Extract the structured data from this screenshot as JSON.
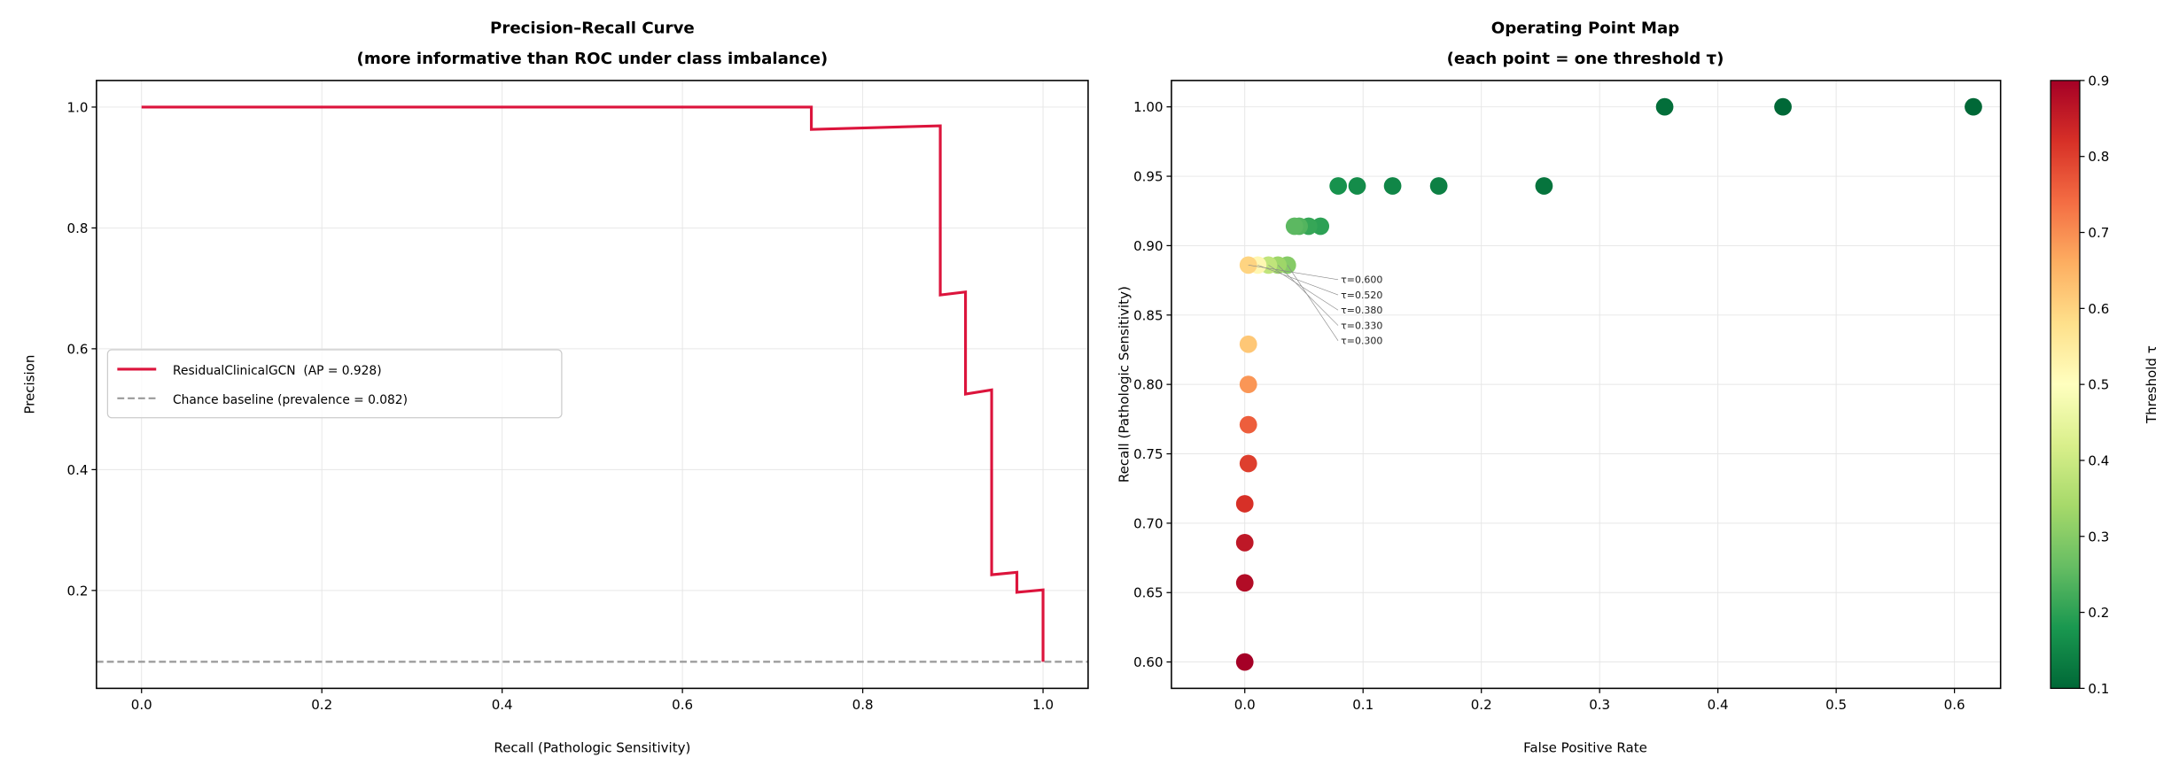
{
  "chart_data": [
    {
      "type": "line",
      "title": "Precision–Recall Curve",
      "subtitle": "(more informative than ROC under class imbalance)",
      "xlabel": "Recall (Pathologic Sensitivity)",
      "ylabel": "Precision",
      "xlim": [
        -0.05,
        1.05
      ],
      "ylim": [
        0.038,
        1.044
      ],
      "xticks": [
        0.0,
        0.2,
        0.4,
        0.6,
        0.8,
        1.0
      ],
      "xtick_labels": [
        "0.0",
        "0.2",
        "0.4",
        "0.6",
        "0.8",
        "1.0"
      ],
      "yticks": [
        0.2,
        0.4,
        0.6,
        0.8,
        1.0
      ],
      "ytick_labels": [
        "0.2",
        "0.4",
        "0.6",
        "0.8",
        "1.0"
      ],
      "grid": true,
      "legend_position": "center-left",
      "series": [
        {
          "name": "ResidualClinicalGCN  (AP = 0.928)",
          "color": "#dc143c",
          "style": "step",
          "points": [
            [
              0.0,
              1.0
            ],
            [
              0.743,
              1.0
            ],
            [
              0.743,
              0.963
            ],
            [
              0.886,
              0.969
            ],
            [
              0.886,
              0.689
            ],
            [
              0.914,
              0.694
            ],
            [
              0.914,
              0.525
            ],
            [
              0.943,
              0.532
            ],
            [
              0.943,
              0.226
            ],
            [
              0.971,
              0.23
            ],
            [
              0.971,
              0.197
            ],
            [
              1.0,
              0.201
            ],
            [
              1.0,
              0.082
            ]
          ]
        },
        {
          "name": "Chance baseline (prevalence = 0.082)",
          "color": "#999999",
          "style": "dashed",
          "y": 0.082
        }
      ]
    },
    {
      "type": "scatter",
      "title": "Operating Point Map",
      "subtitle": "(each point = one threshold τ)",
      "xlabel": "False Positive Rate",
      "ylabel": "Recall (Pathologic Sensitivity)",
      "xlim": [
        -0.062,
        0.639
      ],
      "ylim": [
        0.581,
        1.019
      ],
      "xticks": [
        0.0,
        0.1,
        0.2,
        0.3,
        0.4,
        0.5,
        0.6
      ],
      "xtick_labels": [
        "0.0",
        "0.1",
        "0.2",
        "0.3",
        "0.4",
        "0.5",
        "0.6"
      ],
      "yticks": [
        0.6,
        0.65,
        0.7,
        0.75,
        0.8,
        0.85,
        0.9,
        0.95,
        1.0
      ],
      "ytick_labels": [
        "0.60",
        "0.65",
        "0.70",
        "0.75",
        "0.80",
        "0.85",
        "0.90",
        "0.95",
        "1.00"
      ],
      "grid": true,
      "colormap": "RdYlGn_r",
      "colorbar": {
        "label": "Threshold τ",
        "range": [
          0.1,
          0.9
        ],
        "ticks": [
          0.1,
          0.2,
          0.3,
          0.4,
          0.5,
          0.6,
          0.7,
          0.8,
          0.9
        ],
        "tick_labels": [
          "0.1",
          "0.2",
          "0.3",
          "0.4",
          "0.5",
          "0.6",
          "0.7",
          "0.8",
          "0.9"
        ]
      },
      "points": [
        {
          "fpr": 0.0,
          "recall": 0.6,
          "tau": 0.9
        },
        {
          "fpr": 0.0,
          "recall": 0.657,
          "tau": 0.88
        },
        {
          "fpr": 0.0,
          "recall": 0.686,
          "tau": 0.86
        },
        {
          "fpr": 0.0,
          "recall": 0.714,
          "tau": 0.82
        },
        {
          "fpr": 0.003,
          "recall": 0.743,
          "tau": 0.8
        },
        {
          "fpr": 0.003,
          "recall": 0.771,
          "tau": 0.76
        },
        {
          "fpr": 0.003,
          "recall": 0.8,
          "tau": 0.69
        },
        {
          "fpr": 0.003,
          "recall": 0.829,
          "tau": 0.62
        },
        {
          "fpr": 0.036,
          "recall": 0.886,
          "tau": 0.3
        },
        {
          "fpr": 0.028,
          "recall": 0.886,
          "tau": 0.33
        },
        {
          "fpr": 0.02,
          "recall": 0.886,
          "tau": 0.38
        },
        {
          "fpr": 0.011,
          "recall": 0.886,
          "tau": 0.52
        },
        {
          "fpr": 0.003,
          "recall": 0.886,
          "tau": 0.6
        },
        {
          "fpr": 0.064,
          "recall": 0.914,
          "tau": 0.2
        },
        {
          "fpr": 0.054,
          "recall": 0.914,
          "tau": 0.21
        },
        {
          "fpr": 0.046,
          "recall": 0.914,
          "tau": 0.24
        },
        {
          "fpr": 0.042,
          "recall": 0.914,
          "tau": 0.25
        },
        {
          "fpr": 0.079,
          "recall": 0.943,
          "tau": 0.17
        },
        {
          "fpr": 0.095,
          "recall": 0.943,
          "tau": 0.16
        },
        {
          "fpr": 0.125,
          "recall": 0.943,
          "tau": 0.15
        },
        {
          "fpr": 0.164,
          "recall": 0.943,
          "tau": 0.14
        },
        {
          "fpr": 0.253,
          "recall": 0.943,
          "tau": 0.12
        },
        {
          "fpr": 0.355,
          "recall": 1.0,
          "tau": 0.11
        },
        {
          "fpr": 0.455,
          "recall": 1.0,
          "tau": 0.1
        },
        {
          "fpr": 0.616,
          "recall": 1.0,
          "tau": 0.1
        }
      ],
      "annotations": [
        {
          "text": "τ=0.600",
          "fpr": 0.003,
          "recall": 0.886
        },
        {
          "text": "τ=0.520",
          "fpr": 0.011,
          "recall": 0.886
        },
        {
          "text": "τ=0.380",
          "fpr": 0.02,
          "recall": 0.886
        },
        {
          "text": "τ=0.330",
          "fpr": 0.028,
          "recall": 0.886
        },
        {
          "text": "τ=0.300",
          "fpr": 0.036,
          "recall": 0.886
        }
      ]
    }
  ]
}
